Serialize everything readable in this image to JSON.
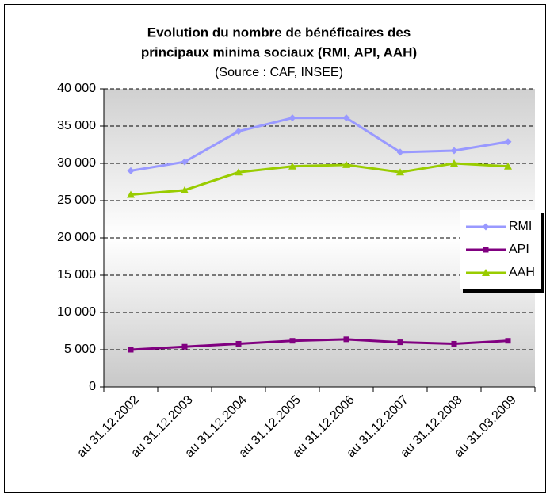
{
  "chart_data": {
    "type": "line",
    "title": [
      "Evolution du nombre de bénéficaires des",
      "principaux minima sociaux (RMI, API, AAH)"
    ],
    "subtitle": "(Source : CAF, INSEE)",
    "categories": [
      "au 31.12.2002",
      "au 31.12.2003",
      "au 31.12.2004",
      "au 31.12.2005",
      "au 31.12.2006",
      "au 31.12.2007",
      "au 31.12.2008",
      "au 31.03.2009"
    ],
    "series": [
      {
        "name": "RMI",
        "color": "#9999ff",
        "marker": "diamond",
        "values": [
          29000,
          30200,
          34300,
          36100,
          36100,
          31500,
          31700,
          32900
        ]
      },
      {
        "name": "API",
        "color": "#800080",
        "marker": "square",
        "values": [
          5000,
          5400,
          5800,
          6200,
          6400,
          6000,
          5800,
          6200
        ]
      },
      {
        "name": "AAH",
        "color": "#99cc00",
        "marker": "triangle",
        "values": [
          25800,
          26400,
          28800,
          29600,
          29800,
          28800,
          30000,
          29600
        ]
      }
    ],
    "ylim": [
      0,
      40000
    ],
    "yticks": [
      0,
      {
        "value": 5000,
        "label": "5 000"
      },
      {
        "value": 10000,
        "label": "10 000"
      },
      {
        "value": 15000,
        "label": "15 000"
      },
      {
        "value": 20000,
        "label": "20 000"
      },
      {
        "value": 25000,
        "label": "25 000"
      },
      {
        "value": 30000,
        "label": "30 000"
      },
      {
        "value": 35000,
        "label": "35 000"
      },
      {
        "value": 40000,
        "label": "40 000"
      }
    ],
    "grid": true,
    "legend": "right"
  }
}
